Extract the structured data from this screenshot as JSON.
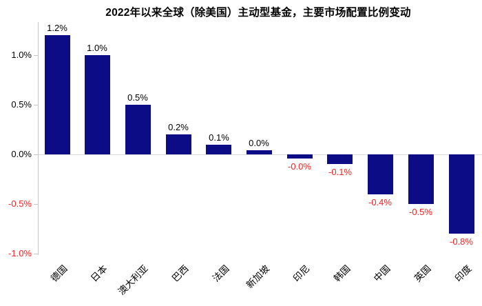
{
  "chart_data": {
    "type": "bar",
    "title": "2022年以来全球（除美国）主动型基金，主要市场配置比例变动",
    "categories": [
      "德国",
      "日本",
      "澳大利亚",
      "巴西",
      "法国",
      "新加坡",
      "印尼",
      "韩国",
      "中国",
      "英国",
      "印度"
    ],
    "values": [
      1.2,
      1.0,
      0.5,
      0.2,
      0.1,
      0.0,
      -0.0,
      -0.1,
      -0.4,
      -0.5,
      -0.8
    ],
    "value_labels": [
      "1.2%",
      "1.0%",
      "0.5%",
      "0.2%",
      "0.1%",
      "0.0%",
      "-0.0%",
      "-0.1%",
      "-0.4%",
      "-0.5%",
      "-0.8%"
    ],
    "unit": "%",
    "y_ticks": [
      {
        "label": "1.0%",
        "value": 1.0
      },
      {
        "label": "0.5%",
        "value": 0.5
      },
      {
        "label": "0.0%",
        "value": 0.0
      },
      {
        "label": "-0.5%",
        "value": -0.5
      },
      {
        "label": "-1.0%",
        "value": -1.0
      }
    ],
    "ylim": [
      -1.0,
      1.25
    ],
    "grid": false,
    "legend": null,
    "bar_color": "#0c0c87",
    "positive_text_color": "#000000",
    "negative_text_color": "#fb2020",
    "axis_color": "#c6c6c6"
  }
}
